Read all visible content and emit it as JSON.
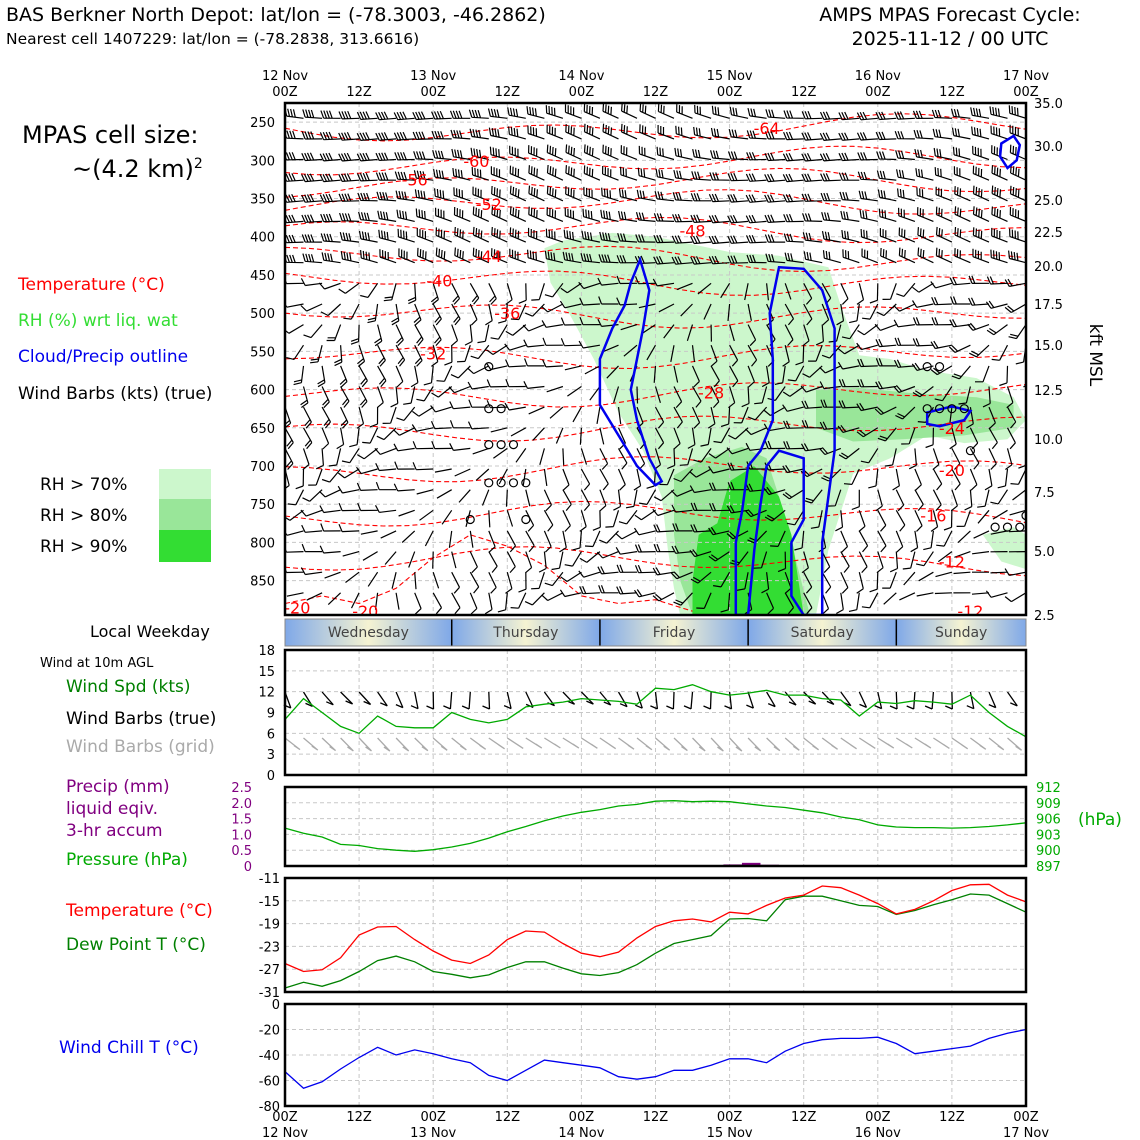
{
  "header": {
    "station_line": "BAS Berkner North Depot: lat/lon = (-78.3003, -46.2862)",
    "cell_line": "Nearest cell 1407229: lat/lon = (-78.2838, 313.6616)",
    "cycle_line1": "AMPS MPAS Forecast Cycle:",
    "cycle_line2": "2025-11-12 / 00 UTC"
  },
  "cell_size": {
    "line1": "MPAS cell size:",
    "line2": "~(4.2 km)",
    "sup": "2"
  },
  "legend": {
    "temperature": "Temperature (°C)",
    "rh": "RH (%) wrt liq. wat",
    "cloud": "Cloud/Precip outline",
    "barbs": "Wind Barbs (kts) (true)",
    "rh70": "RH > 70%",
    "rh80": "RH > 80%",
    "rh90": "RH > 90%"
  },
  "colors": {
    "temp": "#ff0000",
    "rh_text": "#33dd33",
    "cloud": "#0000ee",
    "rh70": "#ccf7cc",
    "rh80": "#99e699",
    "rh90": "#33dd33",
    "pressure": "#00aa00",
    "precip": "#800080",
    "dewpoint": "#008000",
    "windchill": "#0000ee",
    "grid_barbs": "#aaaaaa"
  },
  "time_axis": {
    "top_labels": [
      {
        "t": 0,
        "l1": "12 Nov",
        "l2": "00Z"
      },
      {
        "t": 12,
        "l1": "",
        "l2": "12Z"
      },
      {
        "t": 24,
        "l1": "13 Nov",
        "l2": "00Z"
      },
      {
        "t": 36,
        "l1": "",
        "l2": "12Z"
      },
      {
        "t": 48,
        "l1": "14 Nov",
        "l2": "00Z"
      },
      {
        "t": 60,
        "l1": "",
        "l2": "12Z"
      },
      {
        "t": 72,
        "l1": "15 Nov",
        "l2": "00Z"
      },
      {
        "t": 84,
        "l1": "",
        "l2": "12Z"
      },
      {
        "t": 96,
        "l1": "16 Nov",
        "l2": "00Z"
      },
      {
        "t": 108,
        "l1": "",
        "l2": "12Z"
      },
      {
        "t": 120,
        "l1": "17 Nov",
        "l2": "00Z"
      }
    ],
    "bottom_labels": [
      {
        "t": 0,
        "l1": "00Z",
        "l2": "12 Nov"
      },
      {
        "t": 12,
        "l1": "12Z",
        "l2": ""
      },
      {
        "t": 24,
        "l1": "00Z",
        "l2": "13 Nov"
      },
      {
        "t": 36,
        "l1": "12Z",
        "l2": ""
      },
      {
        "t": 48,
        "l1": "00Z",
        "l2": "14 Nov"
      },
      {
        "t": 60,
        "l1": "12Z",
        "l2": ""
      },
      {
        "t": 72,
        "l1": "00Z",
        "l2": "15 Nov"
      },
      {
        "t": 84,
        "l1": "12Z",
        "l2": ""
      },
      {
        "t": 96,
        "l1": "00Z",
        "l2": "16 Nov"
      },
      {
        "t": 108,
        "l1": "12Z",
        "l2": ""
      },
      {
        "t": 120,
        "l1": "00Z",
        "l2": "17 Nov"
      }
    ]
  },
  "weekday": {
    "label": "Local Weekday",
    "days": [
      {
        "name": "Wednesday",
        "t0": 0,
        "t1": 27
      },
      {
        "name": "Thursday",
        "t0": 27,
        "t1": 51
      },
      {
        "name": "Friday",
        "t0": 51,
        "t1": 75
      },
      {
        "name": "Saturday",
        "t0": 75,
        "t1": 99
      },
      {
        "name": "Sunday",
        "t0": 99,
        "t1": 120
      }
    ]
  },
  "chart_data": [
    {
      "type": "heatmap",
      "name": "time-height cross section",
      "x_range_hours": [
        0,
        120
      ],
      "y_pressure_hpa": [
        250,
        300,
        350,
        400,
        450,
        500,
        550,
        600,
        650,
        700,
        750,
        800,
        850
      ],
      "y_range_hpa": [
        225,
        895
      ],
      "right_axis_kft": [
        35.0,
        30.0,
        25.0,
        22.5,
        20.0,
        17.5,
        15.0,
        12.5,
        10.0,
        7.5,
        5.0,
        2.5
      ],
      "right_axis_label": "kft MSL",
      "temp_contours": [
        {
          "label": "-64",
          "t": 78,
          "p": 258
        },
        {
          "label": "-60",
          "t": 31,
          "p": 301
        },
        {
          "label": "-56",
          "t": 21,
          "p": 325
        },
        {
          "label": "-52",
          "t": 33,
          "p": 357
        },
        {
          "label": "-48",
          "t": 66,
          "p": 392
        },
        {
          "label": "-44",
          "t": 33,
          "p": 425
        },
        {
          "label": "-40",
          "t": 25,
          "p": 457
        },
        {
          "label": "-36",
          "t": 36,
          "p": 500
        },
        {
          "label": "-32",
          "t": 24,
          "p": 553
        },
        {
          "label": "-28",
          "t": 69,
          "p": 604
        },
        {
          "label": "-24",
          "t": 108,
          "p": 650
        },
        {
          "label": "-20",
          "t": 108,
          "p": 705
        },
        {
          "label": "-16",
          "t": 105,
          "p": 765
        },
        {
          "label": "-12",
          "t": 108,
          "p": 825
        },
        {
          "label": "-12",
          "t": 111,
          "p": 890
        },
        {
          "label": "-20",
          "t": 2,
          "p": 885
        },
        {
          "label": "-20",
          "t": 13,
          "p": 890
        }
      ],
      "rh_bands": [
        "RH > 70%",
        "RH > 80%",
        "RH > 90%"
      ],
      "cloud_outline": "blue outline around saturated layers",
      "wind_barbs": "kts (true)"
    },
    {
      "type": "line",
      "name": "wind",
      "ylim": [
        0,
        18
      ],
      "yticks": [
        0,
        3,
        6,
        9,
        12,
        15,
        18
      ],
      "title": "Wind at 10m AGL",
      "labels": {
        "spd": "Wind Spd (kts)",
        "barbs_true": "Wind Barbs (true)",
        "barbs_grid": "Wind Barbs (grid)"
      },
      "x": [
        0,
        3,
        6,
        9,
        12,
        15,
        18,
        21,
        24,
        27,
        30,
        33,
        36,
        39,
        42,
        45,
        48,
        51,
        54,
        57,
        60,
        63,
        66,
        69,
        72,
        75,
        78,
        81,
        84,
        87,
        90,
        93,
        96,
        99,
        102,
        105,
        108,
        111,
        114,
        117,
        120
      ],
      "wind_spd": [
        8,
        11,
        9,
        7,
        6,
        8.5,
        7,
        6.8,
        6.8,
        9,
        8,
        7.5,
        8,
        9.8,
        10.2,
        10.5,
        11,
        10.8,
        10.6,
        10.2,
        12.5,
        12.3,
        13,
        12,
        11.5,
        11.8,
        12.2,
        11.5,
        11.5,
        11,
        10.8,
        8.5,
        10.5,
        10.3,
        10.7,
        10.5,
        10.2,
        11.5,
        9,
        7,
        5.5
      ]
    },
    {
      "type": "line",
      "name": "precip_pressure",
      "labels": {
        "precip1": "Precip (mm)",
        "precip2": "liquid eqiv.",
        "precip3": "3-hr accum",
        "pressure": "Pressure (hPa)"
      },
      "precip_ylim": [
        0,
        2.5
      ],
      "precip_yticks": [
        "0",
        "0.5",
        "1.0",
        "1.5",
        "2.0",
        "2.5"
      ],
      "pressure_ylim": [
        897,
        912
      ],
      "pressure_yticks": [
        897,
        900,
        903,
        906,
        909,
        912
      ],
      "pressure_unit": "(hPa)",
      "x": [
        0,
        3,
        6,
        9,
        12,
        15,
        18,
        21,
        24,
        27,
        30,
        33,
        36,
        39,
        42,
        45,
        48,
        51,
        54,
        57,
        60,
        63,
        66,
        69,
        72,
        75,
        78,
        81,
        84,
        87,
        90,
        93,
        96,
        99,
        102,
        105,
        108,
        111,
        114,
        117,
        120
      ],
      "pressure": [
        904.2,
        903.2,
        902.5,
        901.1,
        900.9,
        900.3,
        900,
        899.8,
        900.1,
        900.6,
        901.3,
        902.3,
        903.5,
        904.5,
        905.6,
        906.5,
        907.2,
        907.7,
        908.4,
        908.7,
        909.3,
        909.4,
        909.2,
        909.3,
        909.2,
        908.8,
        908.4,
        908.1,
        907.6,
        907.1,
        906.3,
        905.8,
        904.8,
        904.4,
        904.3,
        904.3,
        904.2,
        904.3,
        904.5,
        904.8,
        905.2
      ],
      "precip_bars": [
        {
          "t": 72.5,
          "w": 3,
          "v": 0.05
        },
        {
          "t": 75.5,
          "w": 3,
          "v": 0.1
        },
        {
          "t": 78.5,
          "w": 3,
          "v": 0.04
        }
      ]
    },
    {
      "type": "line",
      "name": "temperature",
      "ylim": [
        -31,
        -11
      ],
      "yticks": [
        -31,
        -27,
        -23,
        -19,
        -15,
        -11
      ],
      "labels": {
        "temp": "Temperature (°C)",
        "dew": "Dew Point T (°C)"
      },
      "x": [
        0,
        3,
        6,
        9,
        12,
        15,
        18,
        21,
        24,
        27,
        30,
        33,
        36,
        39,
        42,
        45,
        48,
        51,
        54,
        57,
        60,
        63,
        66,
        69,
        72,
        75,
        78,
        81,
        84,
        87,
        90,
        93,
        96,
        99,
        102,
        105,
        108,
        111,
        114,
        117,
        120
      ],
      "temp": [
        -26,
        -27.4,
        -27.1,
        -25,
        -21,
        -19.6,
        -19.5,
        -21.8,
        -23.8,
        -25.4,
        -26,
        -24.5,
        -21.8,
        -20.3,
        -20.5,
        -22.5,
        -24.2,
        -24.8,
        -24,
        -21.5,
        -19.5,
        -18.5,
        -18.2,
        -18.7,
        -17,
        -17.3,
        -15.8,
        -14.5,
        -14,
        -12.4,
        -12.7,
        -14,
        -15.5,
        -17.3,
        -16.5,
        -15,
        -13.2,
        -12.2,
        -12.1,
        -14,
        -15.2
      ],
      "dew": [
        -30.3,
        -29.3,
        -30,
        -29,
        -27.4,
        -25.5,
        -24.7,
        -25.7,
        -27.4,
        -27.9,
        -28.5,
        -28,
        -26.7,
        -25.7,
        -25.7,
        -26.8,
        -27.8,
        -28.1,
        -27.6,
        -26.2,
        -24.2,
        -22.5,
        -21.8,
        -21.1,
        -18.2,
        -18.1,
        -18.5,
        -14.8,
        -14.2,
        -14.2,
        -15,
        -15.8,
        -16,
        -17.4,
        -16.7,
        -15.7,
        -14.8,
        -13.8,
        -14,
        -15.5,
        -17
      ]
    },
    {
      "type": "line",
      "name": "windchill",
      "ylim": [
        -80,
        0
      ],
      "yticks": [
        -80,
        -60,
        -40,
        -20,
        0
      ],
      "labels": {
        "wc": "Wind Chill T (°C)"
      },
      "x": [
        0,
        3,
        6,
        9,
        12,
        15,
        18,
        21,
        24,
        27,
        30,
        33,
        36,
        39,
        42,
        45,
        48,
        51,
        54,
        57,
        60,
        63,
        66,
        69,
        72,
        75,
        78,
        81,
        84,
        87,
        90,
        93,
        96,
        99,
        102,
        105,
        108,
        111,
        114,
        117,
        120
      ],
      "windchill": [
        -53,
        -66,
        -61,
        -51,
        -42,
        -34,
        -40,
        -36,
        -39,
        -43,
        -46,
        -56,
        -60,
        -52,
        -44,
        -46,
        -48,
        -50,
        -57,
        -59,
        -57,
        -52,
        -52,
        -48,
        -43,
        -43,
        -46,
        -37,
        -31,
        -28,
        -27,
        -27,
        -26,
        -31,
        -39,
        -37,
        -35,
        -33,
        -27,
        -23,
        -20
      ]
    }
  ]
}
